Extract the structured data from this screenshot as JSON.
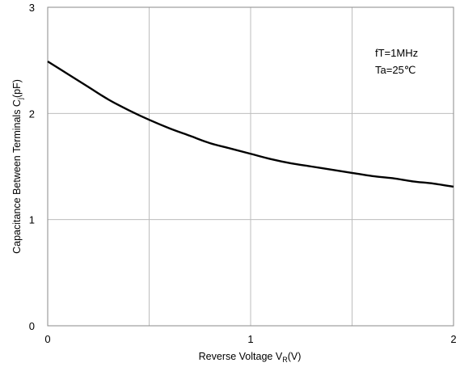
{
  "chart_data": {
    "type": "line",
    "xlim": [
      0,
      2
    ],
    "ylim": [
      0,
      3
    ],
    "x_ticks": [
      {
        "value": 0,
        "label": "0"
      },
      {
        "value": 1,
        "label": "1"
      },
      {
        "value": 2,
        "label": "2"
      }
    ],
    "y_ticks": [
      {
        "value": 0,
        "label": "0"
      },
      {
        "value": 1,
        "label": "1"
      },
      {
        "value": 2,
        "label": "2"
      },
      {
        "value": 3,
        "label": "3"
      }
    ],
    "x_gridlines": [
      0.5,
      1,
      1.5
    ],
    "y_gridlines": [
      1,
      2
    ],
    "grid": true,
    "xlabel": {
      "main": "Reverse Voltage V",
      "sub": "R",
      "tail": "(V)"
    },
    "ylabel": {
      "main": "Capacitance Between Terminals C",
      "sub": "j",
      "tail": "(pF)"
    },
    "annotations": [
      "fT=1MHz",
      "Ta=25℃"
    ],
    "series": [
      {
        "x": [
          0,
          0.1,
          0.2,
          0.3,
          0.4,
          0.5,
          0.6,
          0.7,
          0.8,
          0.9,
          1.0,
          1.1,
          1.2,
          1.3,
          1.4,
          1.5,
          1.6,
          1.7,
          1.8,
          1.9,
          2.0
        ],
        "values": [
          2.49,
          2.37,
          2.25,
          2.13,
          2.03,
          1.94,
          1.86,
          1.79,
          1.72,
          1.67,
          1.62,
          1.57,
          1.53,
          1.5,
          1.47,
          1.44,
          1.41,
          1.39,
          1.36,
          1.34,
          1.31
        ]
      }
    ]
  }
}
